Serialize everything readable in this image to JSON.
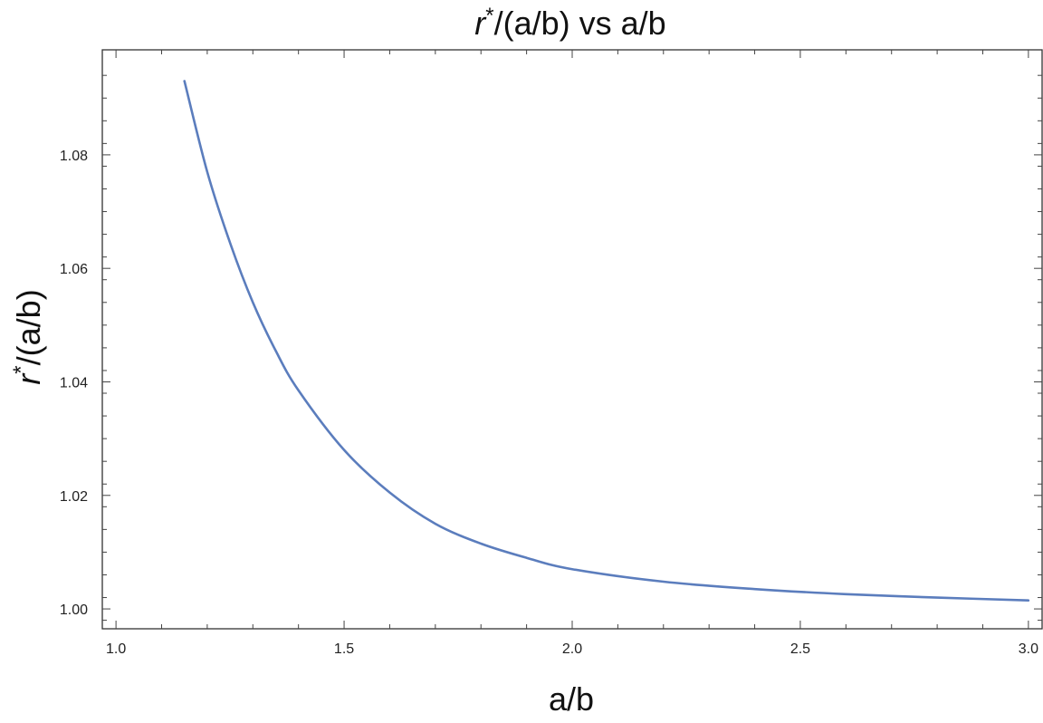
{
  "chart_data": {
    "type": "line",
    "title": "r*/(a/b) vs a/b",
    "title_parts": {
      "main": "r",
      "sup": "*",
      "rest": "/(a/b) vs a/b"
    },
    "xlabel": "a/b",
    "ylabel": "r*/(a/b)",
    "ylabel_parts": {
      "main": "r",
      "sup": "*",
      "rest": "/(a/b)"
    },
    "xlim": [
      0.97,
      3.03
    ],
    "ylim": [
      0.9965,
      1.0985
    ],
    "x_ticks": [
      "1.0",
      "1.5",
      "2.0",
      "2.5",
      "3.0"
    ],
    "y_ticks": [
      "1.00",
      "1.02",
      "1.04",
      "1.06",
      "1.08"
    ],
    "grid": false,
    "frame": true,
    "series": [
      {
        "color": "#5b7dbd",
        "x": [
          1.15,
          1.2,
          1.25,
          1.3,
          1.35,
          1.4,
          1.5,
          1.6,
          1.7,
          1.8,
          1.9,
          2.0,
          2.2,
          2.4,
          2.6,
          2.8,
          3.0
        ],
        "y": [
          1.093,
          1.077,
          1.0645,
          1.054,
          1.0455,
          1.0385,
          1.028,
          1.0205,
          1.015,
          1.0115,
          1.009,
          1.007,
          1.0048,
          1.0035,
          1.0026,
          1.002,
          1.0015
        ]
      }
    ]
  }
}
